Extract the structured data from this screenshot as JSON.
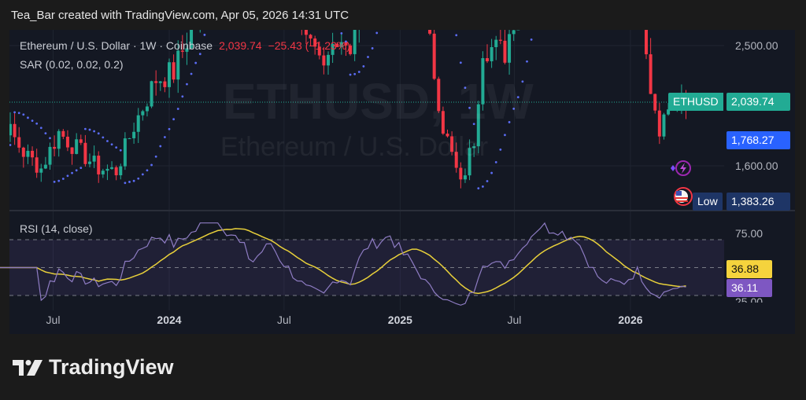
{
  "header": {
    "title": "Tea_Bar created with TradingView.com, Apr 05, 2026 14:31 UTC"
  },
  "watermark": {
    "symbol": "ETHUSD, 1W",
    "name": "Ethereum / U.S. Dollar"
  },
  "legend": {
    "symbol_line": "Ethereum / U.S. Dollar · 1W · Coinbase",
    "price": "2,039.74",
    "change": "−25.43 (−1.23%)",
    "sar": "SAR (0.02, 0.02, 0.2)",
    "rsi": "RSI (14, close)"
  },
  "price_axis": {
    "ticks": [
      "2,500.00",
      "1,600.00"
    ]
  },
  "tags": {
    "symbol": "ETHUSD",
    "last_price": "2,039.74",
    "sar_value": "1,768.27",
    "low_label": "Low",
    "low_value": "1,383.26",
    "rsi_ma": "36.88",
    "rsi": "36.11"
  },
  "rsi_axis": {
    "ticks": [
      "75.00",
      "25.00"
    ]
  },
  "time_axis": {
    "labels": [
      {
        "text": "Jul",
        "year": false,
        "date": "2023-07-01"
      },
      {
        "text": "2024",
        "year": true,
        "date": "2024-01-01"
      },
      {
        "text": "Jul",
        "year": false,
        "date": "2024-07-01"
      },
      {
        "text": "2025",
        "year": true,
        "date": "2025-01-01"
      },
      {
        "text": "Jul",
        "year": false,
        "date": "2025-07-01"
      },
      {
        "text": "2026",
        "year": true,
        "date": "2026-01-01"
      }
    ]
  },
  "footer": {
    "brand": "TradingView"
  },
  "colors": {
    "up": "#22ab94",
    "down": "#f23645",
    "sar": "#5b6cf5",
    "rsi": "#8e7cc3",
    "rsi_ma": "#e8d03a",
    "last_tag": "#22ab94",
    "sar_tag": "#2962ff",
    "low_tag": "#1e3566",
    "rsi_tag": "#7e57c2"
  },
  "chart_data": {
    "type": "candlestick",
    "interval": "1W",
    "price_path": [
      [
        "2023-03-06",
        1950
      ],
      [
        "2023-04-17",
        1900
      ],
      [
        "2023-05-15",
        1700
      ],
      [
        "2023-06-12",
        1580
      ],
      [
        "2023-07-10",
        1850
      ],
      [
        "2023-08-14",
        1700
      ],
      [
        "2023-09-11",
        1580
      ],
      [
        "2023-10-09",
        1560
      ],
      [
        "2023-11-06",
        1900
      ],
      [
        "2023-12-11",
        2250
      ],
      [
        "2024-01-08",
        2300
      ],
      [
        "2024-02-12",
        2700
      ],
      [
        "2024-03-11",
        3800
      ],
      [
        "2024-05-13",
        3000
      ],
      [
        "2024-06-10",
        3500
      ],
      [
        "2024-08-05",
        2500
      ],
      [
        "2024-09-02",
        2300
      ],
      [
        "2024-09-23",
        2600
      ],
      [
        "2024-10-14",
        2500
      ],
      [
        "2024-11-11",
        3200
      ],
      [
        "2024-12-16",
        3800
      ],
      [
        "2025-01-20",
        3300
      ],
      [
        "2025-02-24",
        2300
      ],
      [
        "2025-03-10",
        1900
      ],
      [
        "2025-04-07",
        1450
      ],
      [
        "2025-04-28",
        1800
      ],
      [
        "2025-05-12",
        2500
      ],
      [
        "2025-06-16",
        2450
      ],
      [
        "2025-07-14",
        3000
      ],
      [
        "2025-08-18",
        4400
      ],
      [
        "2025-10-06",
        4500
      ],
      [
        "2025-11-17",
        3000
      ],
      [
        "2025-12-22",
        2900
      ],
      [
        "2026-01-12",
        3200
      ],
      [
        "2026-02-02",
        2200
      ],
      [
        "2026-02-16",
        1900
      ],
      [
        "2026-03-09",
        2100
      ],
      [
        "2026-03-30",
        2039.74
      ]
    ],
    "last": 2039.74,
    "indicators": {
      "sar": {
        "params": [
          0.02,
          0.02,
          0.2
        ],
        "last": 1768.27
      },
      "rsi": {
        "length": 14,
        "last": 36.11,
        "ma_last": 36.88,
        "bands": [
          30,
          50,
          70
        ]
      }
    }
  }
}
